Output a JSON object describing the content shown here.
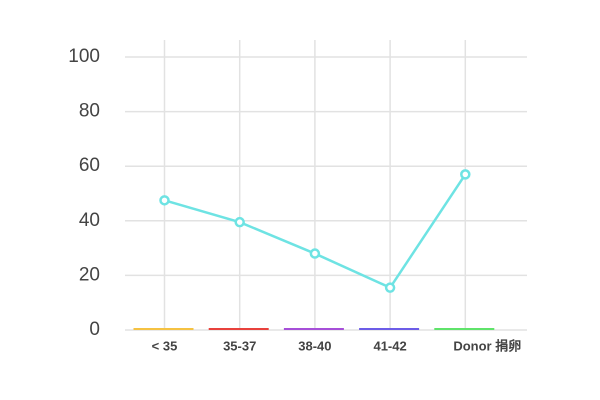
{
  "chart_data": {
    "type": "line",
    "categories": [
      "< 35",
      "35-37",
      "38-40",
      "41-42",
      "Donor 捐卵"
    ],
    "category_colors": [
      "#f5c242",
      "#e8413c",
      "#a64fd8",
      "#6c5ce7",
      "#5fe36a"
    ],
    "series": [
      {
        "color": "#6ee3e3",
        "values": [
          47.5,
          39.5,
          28,
          15.5,
          57
        ]
      }
    ],
    "ylim": [
      0,
      100
    ],
    "yticks": [
      0,
      20,
      40,
      60,
      80,
      100
    ],
    "grid": true
  }
}
